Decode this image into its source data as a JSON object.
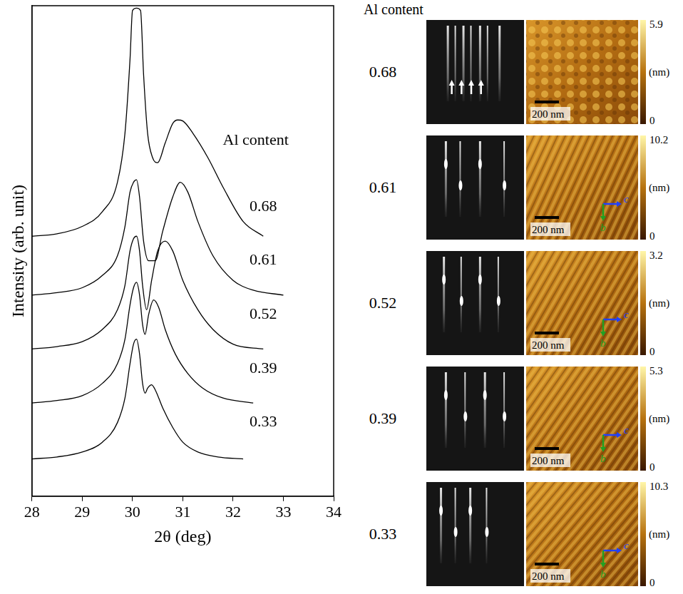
{
  "chart_data": {
    "type": "line",
    "x_label": "2θ (deg)",
    "y_label": "Intensity (arb. unit)",
    "xlim": [
      28,
      34
    ],
    "xticks": [
      28,
      29,
      30,
      31,
      32,
      33,
      34
    ],
    "ylim": [
      0,
      10
    ],
    "tick_labels": "x",
    "grid": false,
    "annotations": [
      {
        "text": "Al content",
        "x": 32.45,
        "y": 7.25
      }
    ],
    "series": [
      {
        "name": "0.68",
        "color": "#000000",
        "label_x": 32.6,
        "label_y": 5.9,
        "x": [
          28,
          28.5,
          29,
          29.4,
          29.7,
          29.85,
          29.95,
          30.0,
          30.08,
          30.16,
          30.22,
          30.3,
          30.4,
          30.5,
          30.65,
          30.8,
          30.9,
          31.0,
          31.2,
          31.5,
          31.8,
          32.2,
          32.6
        ],
        "values": [
          5.3,
          5.35,
          5.5,
          5.8,
          6.4,
          7.4,
          8.9,
          9.9,
          9.95,
          9.9,
          8.6,
          7.4,
          6.9,
          6.8,
          7.2,
          7.6,
          7.67,
          7.65,
          7.4,
          6.9,
          6.3,
          5.6,
          5.3
        ]
      },
      {
        "name": "0.61",
        "color": "#000000",
        "label_x": 32.6,
        "label_y": 4.8,
        "x": [
          28,
          28.5,
          29,
          29.4,
          29.7,
          29.85,
          29.95,
          30.02,
          30.08,
          30.14,
          30.22,
          30.32,
          30.45,
          30.6,
          30.8,
          30.95,
          31.1,
          31.3,
          31.6,
          32.0,
          32.4,
          33.0
        ],
        "values": [
          4.1,
          4.15,
          4.25,
          4.5,
          4.9,
          5.5,
          6.2,
          6.4,
          6.45,
          6.1,
          5.2,
          4.8,
          4.8,
          5.4,
          6.1,
          6.4,
          6.2,
          5.6,
          4.9,
          4.4,
          4.2,
          4.1
        ]
      },
      {
        "name": "0.52",
        "color": "#000000",
        "label_x": 32.6,
        "label_y": 3.7,
        "x": [
          28,
          28.5,
          29,
          29.4,
          29.7,
          29.85,
          29.95,
          30.02,
          30.08,
          30.14,
          30.2,
          30.28,
          30.38,
          30.5,
          30.65,
          30.8,
          31.0,
          31.3,
          31.6,
          32.0,
          32.6
        ],
        "values": [
          3.0,
          3.05,
          3.15,
          3.4,
          3.8,
          4.3,
          5.0,
          5.25,
          5.3,
          5.0,
          4.3,
          3.8,
          4.4,
          5.0,
          5.2,
          5.0,
          4.4,
          3.8,
          3.4,
          3.1,
          3.0
        ]
      },
      {
        "name": "0.39",
        "color": "#000000",
        "label_x": 32.6,
        "label_y": 2.6,
        "x": [
          28,
          28.5,
          29,
          29.4,
          29.7,
          29.85,
          29.95,
          30.02,
          30.08,
          30.14,
          30.2,
          30.25,
          30.32,
          30.42,
          30.52,
          30.65,
          30.85,
          31.1,
          31.4,
          31.8,
          32.4
        ],
        "values": [
          1.9,
          1.95,
          2.05,
          2.3,
          2.7,
          3.2,
          3.9,
          4.25,
          4.36,
          4.1,
          3.5,
          3.3,
          3.7,
          4.0,
          3.85,
          3.4,
          2.9,
          2.5,
          2.2,
          2.0,
          1.9
        ]
      },
      {
        "name": "0.33",
        "color": "#000000",
        "label_x": 32.6,
        "label_y": 1.5,
        "x": [
          28,
          28.5,
          29,
          29.4,
          29.7,
          29.85,
          29.95,
          30.02,
          30.08,
          30.14,
          30.2,
          30.25,
          30.3,
          30.38,
          30.46,
          30.6,
          30.8,
          31.0,
          31.3,
          31.7,
          32.2
        ],
        "values": [
          0.76,
          0.8,
          0.9,
          1.1,
          1.5,
          2.0,
          2.7,
          3.1,
          3.2,
          2.9,
          2.3,
          2.1,
          2.2,
          2.27,
          2.15,
          1.8,
          1.4,
          1.1,
          0.9,
          0.8,
          0.76
        ]
      }
    ]
  },
  "panels": {
    "header": "Al content",
    "scale_bar": "200 nm",
    "unit": "(nm)",
    "rows": [
      {
        "al_content": "0.68",
        "colorbar_range": [
          0,
          5.9
        ],
        "colorbar_ticks": [
          0,
          5.9
        ],
        "axis_labels": []
      },
      {
        "al_content": "0.61",
        "colorbar_range": [
          0,
          10.2
        ],
        "colorbar_ticks": [
          0,
          10.2
        ],
        "axis_labels": [
          "c",
          "b"
        ]
      },
      {
        "al_content": "0.52",
        "colorbar_range": [
          0,
          3.2
        ],
        "colorbar_ticks": [
          0,
          3.2
        ],
        "axis_labels": [
          "c",
          "b"
        ]
      },
      {
        "al_content": "0.39",
        "colorbar_range": [
          0,
          5.3
        ],
        "colorbar_ticks": [
          0,
          5.3
        ],
        "axis_labels": [
          "c",
          "b"
        ]
      },
      {
        "al_content": "0.33",
        "colorbar_range": [
          0,
          10.3
        ],
        "colorbar_ticks": [
          0,
          10.3
        ],
        "axis_labels": [
          "c",
          "b"
        ]
      }
    ]
  }
}
